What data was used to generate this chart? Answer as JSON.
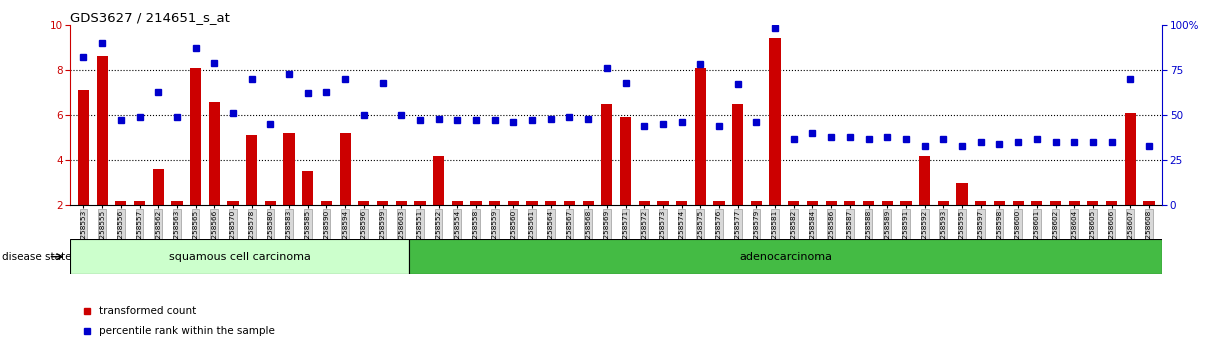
{
  "title": "GDS3627 / 214651_s_at",
  "samples": [
    "GSM258553",
    "GSM258555",
    "GSM258556",
    "GSM258557",
    "GSM258562",
    "GSM258563",
    "GSM258565",
    "GSM258566",
    "GSM258570",
    "GSM258578",
    "GSM258580",
    "GSM258583",
    "GSM258585",
    "GSM258590",
    "GSM258594",
    "GSM258596",
    "GSM258599",
    "GSM258603",
    "GSM258551",
    "GSM258552",
    "GSM258554",
    "GSM258558",
    "GSM258559",
    "GSM258560",
    "GSM258561",
    "GSM258564",
    "GSM258567",
    "GSM258568",
    "GSM258569",
    "GSM258571",
    "GSM258572",
    "GSM258573",
    "GSM258574",
    "GSM258575",
    "GSM258576",
    "GSM258577",
    "GSM258579",
    "GSM258581",
    "GSM258582",
    "GSM258584",
    "GSM258586",
    "GSM258587",
    "GSM258588",
    "GSM258589",
    "GSM258591",
    "GSM258592",
    "GSM258593",
    "GSM258595",
    "GSM258597",
    "GSM258598",
    "GSM258600",
    "GSM258601",
    "GSM258602",
    "GSM258604",
    "GSM258605",
    "GSM258606",
    "GSM258607",
    "GSM258608"
  ],
  "bar_values": [
    7.1,
    8.6,
    2.2,
    2.2,
    3.6,
    2.2,
    8.1,
    6.6,
    2.2,
    5.1,
    2.2,
    5.2,
    3.5,
    2.2,
    5.2,
    2.2,
    2.2,
    2.2,
    2.2,
    4.2,
    2.2,
    2.2,
    2.2,
    2.2,
    2.2,
    2.2,
    2.2,
    2.2,
    6.5,
    5.9,
    2.2,
    2.2,
    2.2,
    8.1,
    2.2,
    6.5,
    2.2,
    9.4,
    2.2,
    2.2,
    2.2,
    2.2,
    2.2,
    2.2,
    2.2,
    4.2,
    2.2,
    3.0,
    2.2,
    2.2,
    2.2,
    2.2,
    2.2,
    2.2,
    2.2,
    2.2,
    6.1,
    2.2
  ],
  "dot_values": [
    82,
    90,
    47,
    49,
    63,
    49,
    87,
    79,
    51,
    70,
    45,
    73,
    62,
    63,
    70,
    50,
    68,
    50,
    47,
    48,
    47,
    47,
    47,
    46,
    47,
    48,
    49,
    48,
    76,
    68,
    44,
    45,
    46,
    78,
    44,
    67,
    46,
    98,
    37,
    40,
    38,
    38,
    37,
    38,
    37,
    33,
    37,
    33,
    35,
    34,
    35,
    37,
    35,
    35,
    35,
    35,
    70,
    33
  ],
  "squamous_count": 18,
  "bar_color": "#cc0000",
  "dot_color": "#0000cc",
  "squamous_color": "#ccffcc",
  "adeno_color": "#44bb44",
  "ylim_left": [
    2.0,
    10.0
  ],
  "ylim_right": [
    0,
    100
  ],
  "yticks_left": [
    2,
    4,
    6,
    8,
    10
  ],
  "yticks_right": [
    0,
    25,
    50,
    75,
    100
  ],
  "grid_values": [
    4,
    6,
    8
  ],
  "left_axis_color": "#cc0000",
  "right_axis_color": "#0000cc"
}
